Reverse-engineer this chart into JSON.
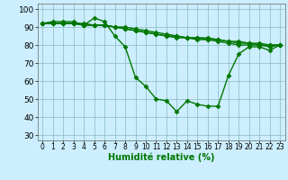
{
  "xlabel": "Humidité relative (%)",
  "background_color": "#cceeff",
  "grid_color": "#88bbbb",
  "line_color": "#007700",
  "xlim": [
    -0.5,
    23.5
  ],
  "ylim": [
    27,
    103
  ],
  "yticks": [
    30,
    40,
    50,
    60,
    70,
    80,
    90,
    100
  ],
  "xticks": [
    0,
    1,
    2,
    3,
    4,
    5,
    6,
    7,
    8,
    9,
    10,
    11,
    12,
    13,
    14,
    15,
    16,
    17,
    18,
    19,
    20,
    21,
    22,
    23
  ],
  "xtick_labels": [
    "0",
    "1",
    "2",
    "3",
    "4",
    "5",
    "6",
    "7",
    "8",
    "9",
    "10",
    "11",
    "12",
    "13",
    "14",
    "15",
    "16",
    "17",
    "18",
    "19",
    "20",
    "21",
    "22",
    "23"
  ],
  "series": [
    [
      92,
      93,
      93,
      93,
      91,
      95,
      93,
      85,
      79,
      62,
      57,
      50,
      49,
      43,
      49,
      47,
      46,
      46,
      63,
      75,
      79,
      79,
      77,
      80
    ],
    [
      92,
      92,
      92,
      92,
      91,
      91,
      91,
      90,
      89,
      88,
      87,
      86,
      85,
      84,
      84,
      83,
      83,
      82,
      81,
      80,
      80,
      80,
      79,
      80
    ],
    [
      92,
      92,
      92,
      92,
      91,
      91,
      91,
      90,
      89,
      88,
      87,
      86,
      85,
      85,
      84,
      84,
      84,
      83,
      82,
      82,
      81,
      81,
      80,
      80
    ],
    [
      92,
      92,
      92,
      92,
      92,
      91,
      91,
      90,
      90,
      89,
      88,
      87,
      86,
      85,
      84,
      84,
      83,
      83,
      82,
      81,
      81,
      80,
      80,
      80
    ]
  ],
  "marker": "D",
  "markersize": 2.5,
  "linewidth": 1.0,
  "xlabel_fontsize": 7,
  "tick_fontsize": 5.5,
  "ytick_fontsize": 6.5
}
